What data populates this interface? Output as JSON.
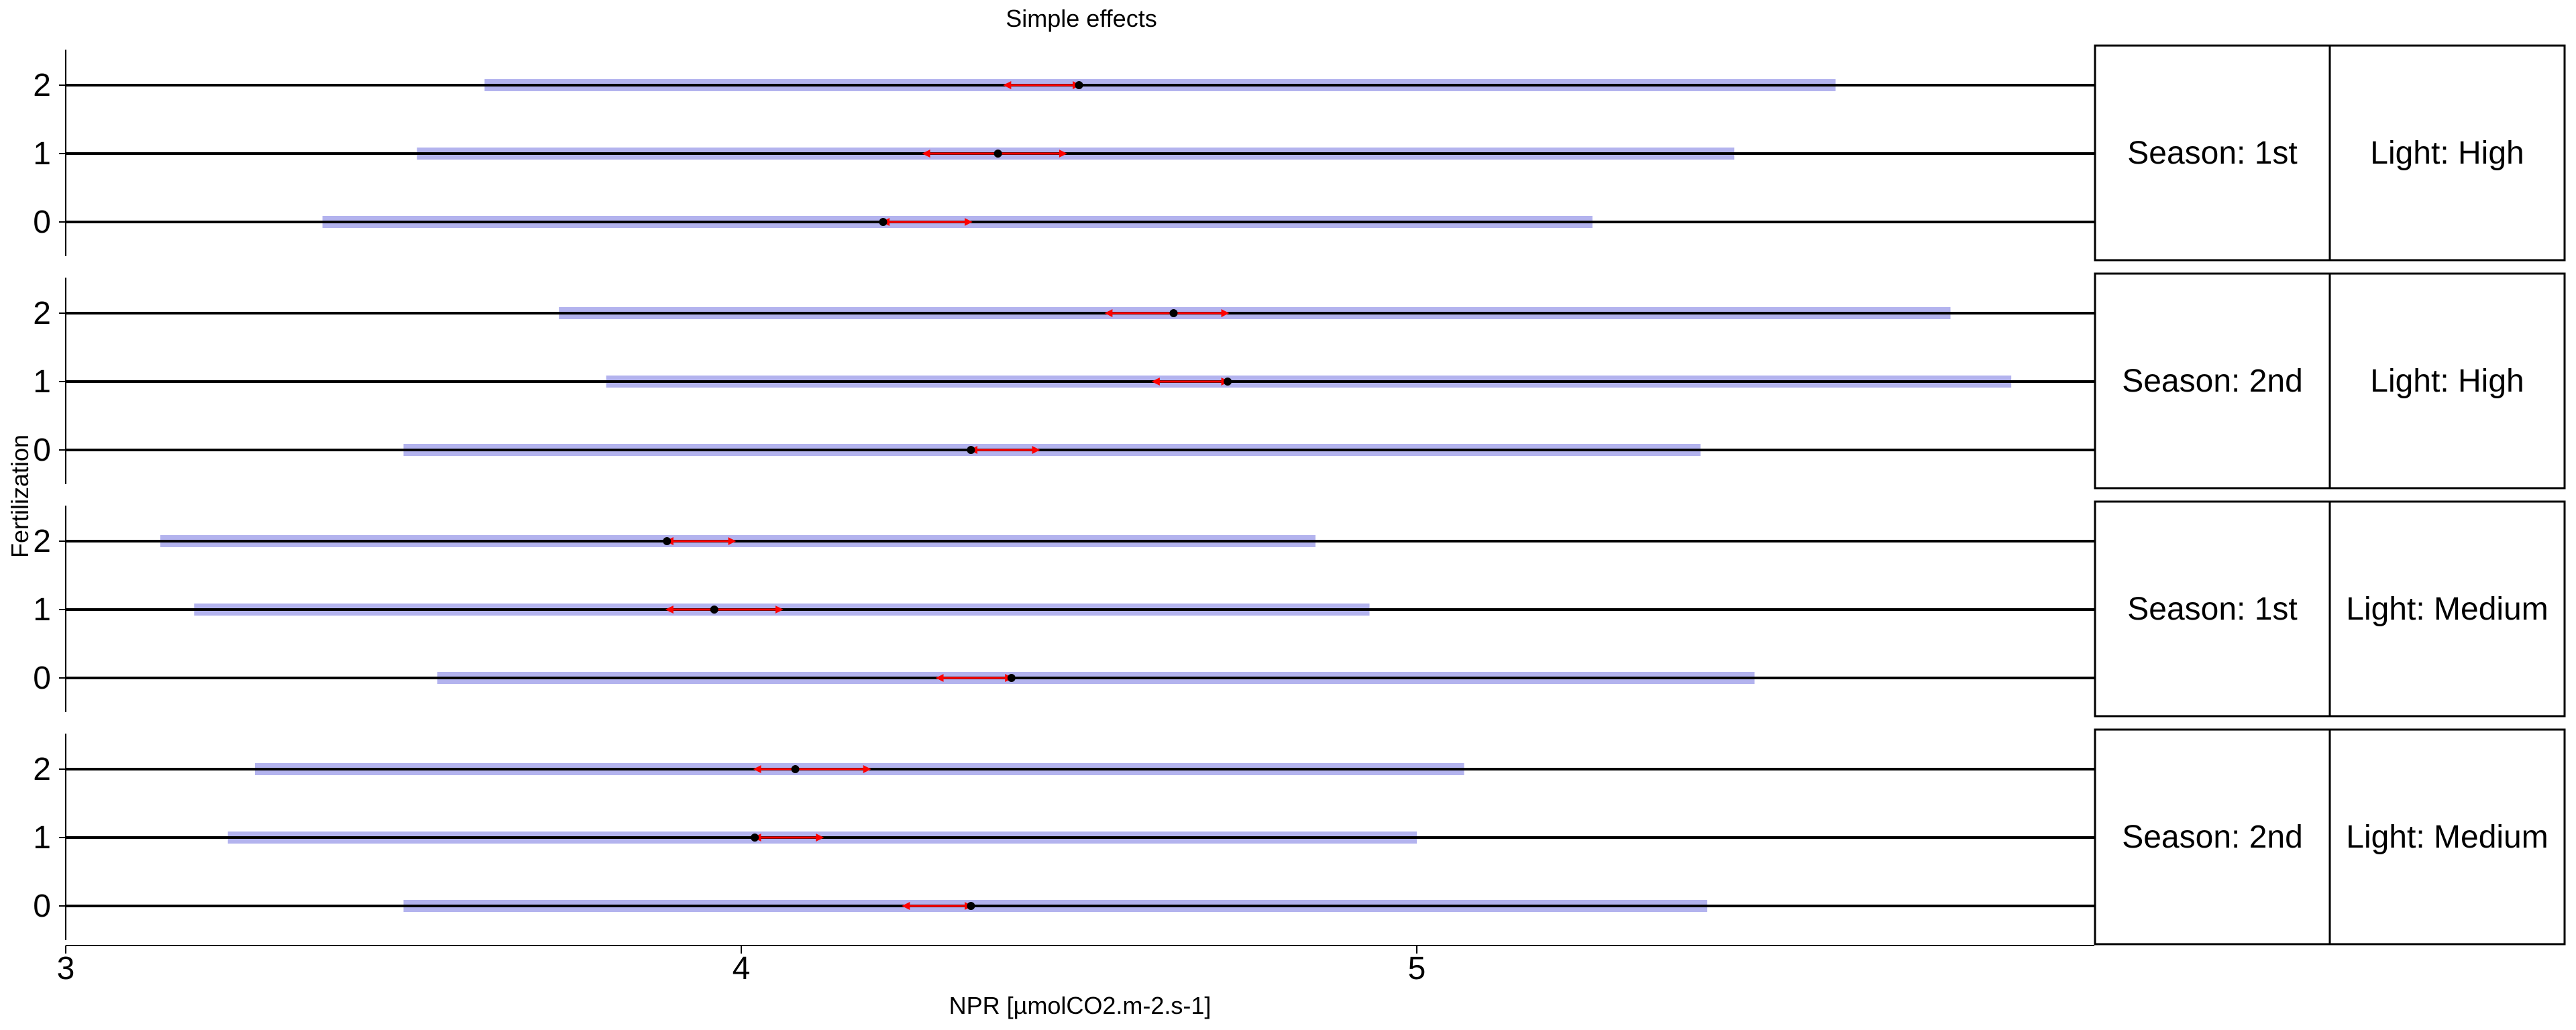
{
  "chart_data": {
    "type": "interval-plot",
    "title": "Simple effects",
    "xlabel": "NPR [µmolCO2.m-2.s-1]",
    "ylabel": "Fertilization",
    "xlim": [
      3,
      6
    ],
    "x_ticks": [
      3,
      4,
      5
    ],
    "y_categories": [
      "0",
      "1",
      "2"
    ],
    "facet_labels": {
      "season_1st": "Season: 1st",
      "season_2nd": "Season: 2nd",
      "light_high": "Light: High",
      "light_medium": "Light: Medium"
    },
    "panels": [
      {
        "season": "Season: 1st",
        "light": "Light: High",
        "rows": [
          {
            "fert": "2",
            "mean": 4.5,
            "ci": [
              3.62,
              5.62
            ],
            "arrow": [
              4.39,
              4.5
            ]
          },
          {
            "fert": "1",
            "mean": 4.38,
            "ci": [
              3.52,
              5.47
            ],
            "arrow": [
              4.27,
              4.48
            ]
          },
          {
            "fert": "0",
            "mean": 4.21,
            "ci": [
              3.38,
              5.26
            ],
            "arrow": [
              4.21,
              4.34
            ]
          }
        ]
      },
      {
        "season": "Season: 2nd",
        "light": "Light: High",
        "rows": [
          {
            "fert": "2",
            "mean": 4.64,
            "ci": [
              3.73,
              5.79
            ],
            "arrow": [
              4.54,
              4.72
            ]
          },
          {
            "fert": "1",
            "mean": 4.72,
            "ci": [
              3.8,
              5.88
            ],
            "arrow": [
              4.61,
              4.72
            ]
          },
          {
            "fert": "0",
            "mean": 4.34,
            "ci": [
              3.5,
              5.42
            ],
            "arrow": [
              4.34,
              4.44
            ]
          }
        ]
      },
      {
        "season": "Season: 1st",
        "light": "Light: Medium",
        "rows": [
          {
            "fert": "2",
            "mean": 3.89,
            "ci": [
              3.14,
              4.85
            ],
            "arrow": [
              3.89,
              3.99
            ]
          },
          {
            "fert": "1",
            "mean": 3.96,
            "ci": [
              3.19,
              4.93
            ],
            "arrow": [
              3.89,
              4.06
            ]
          },
          {
            "fert": "0",
            "mean": 4.4,
            "ci": [
              3.55,
              5.5
            ],
            "arrow": [
              4.29,
              4.4
            ]
          }
        ]
      },
      {
        "season": "Season: 2nd",
        "light": "Light: Medium",
        "rows": [
          {
            "fert": "2",
            "mean": 4.08,
            "ci": [
              3.28,
              5.07
            ],
            "arrow": [
              4.02,
              4.19
            ]
          },
          {
            "fert": "1",
            "mean": 4.02,
            "ci": [
              3.24,
              5.0
            ],
            "arrow": [
              4.02,
              4.12
            ]
          },
          {
            "fert": "0",
            "mean": 4.34,
            "ci": [
              3.5,
              5.43
            ],
            "arrow": [
              4.24,
              4.34
            ]
          }
        ]
      }
    ],
    "colors": {
      "ci_band": "#b3b3ee",
      "arrow": "#ff0000",
      "point": "#000000",
      "line": "#000000"
    },
    "grid": false,
    "legend": "none"
  }
}
